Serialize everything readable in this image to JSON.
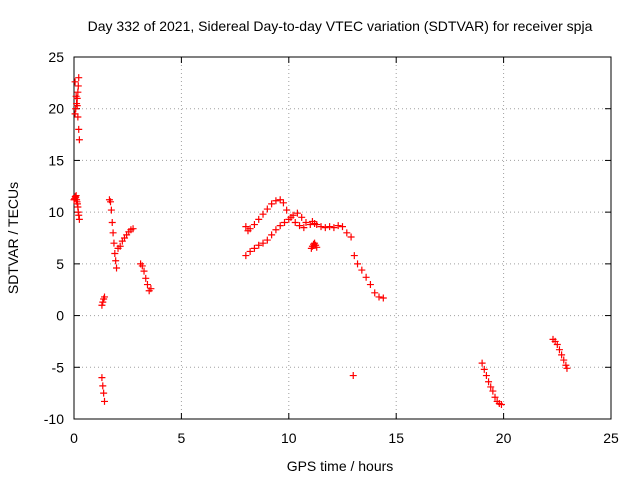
{
  "chart_data": {
    "type": "scatter",
    "title": "Day 332 of 2021, Sidereal Day-to-day VTEC variation (SDTVAR) for receiver spja",
    "xlabel": "GPS time / hours",
    "ylabel": "SDTVAR / TECUs",
    "xlim": [
      0,
      25
    ],
    "ylim": [
      -10,
      25
    ],
    "xticks": [
      0,
      5,
      10,
      15,
      20,
      25
    ],
    "yticks": [
      -10,
      -5,
      0,
      5,
      10,
      15,
      20,
      25
    ],
    "grid": true,
    "marker": "+",
    "color": "#ff0000",
    "series": [
      {
        "name": "SDTVAR",
        "x": [
          0.0,
          0.03,
          0.06,
          0.08,
          0.1,
          0.12,
          0.14,
          0.16,
          0.18,
          0.2,
          0.22,
          0.25,
          0.05,
          0.08,
          0.12,
          0.15,
          0.18,
          0.2,
          0.22,
          0.05,
          0.1,
          0.15,
          0.18,
          0.22,
          0.25,
          1.3,
          1.34,
          1.38,
          1.42,
          1.3,
          1.34,
          1.38,
          1.42,
          1.65,
          1.7,
          1.74,
          1.78,
          1.82,
          1.86,
          1.9,
          1.94,
          1.98,
          2.05,
          2.15,
          2.25,
          2.35,
          2.45,
          2.55,
          2.65,
          2.75,
          3.1,
          3.18,
          3.26,
          3.34,
          3.42,
          3.5,
          3.58,
          8.0,
          8.1,
          8.2,
          8.4,
          8.6,
          8.8,
          9.0,
          9.2,
          9.4,
          9.6,
          9.75,
          9.9,
          10.1,
          10.3,
          10.5,
          10.7,
          8.0,
          8.2,
          8.4,
          8.6,
          8.8,
          9.0,
          9.2,
          9.4,
          9.6,
          9.8,
          10.0,
          10.2,
          10.4,
          10.6,
          10.8,
          11.0,
          11.1,
          11.2,
          11.3,
          11.5,
          11.7,
          11.9,
          12.1,
          12.3,
          12.5,
          12.7,
          12.9,
          13.05,
          13.2,
          13.4,
          13.6,
          13.8,
          14.0,
          14.2,
          14.4,
          11.05,
          11.1,
          11.15,
          11.2,
          11.25,
          11.3,
          13.0,
          19.0,
          19.1,
          19.2,
          19.3,
          19.4,
          19.5,
          19.6,
          19.7,
          19.8,
          19.9,
          22.3,
          22.4,
          22.5,
          22.6,
          22.7,
          22.8,
          22.9,
          22.95
        ],
        "y": [
          11.2,
          11.3,
          11.5,
          11.4,
          11.6,
          11.2,
          11.0,
          10.8,
          10.5,
          10.0,
          9.7,
          9.3,
          19.5,
          20.0,
          20.5,
          21.0,
          21.6,
          22.2,
          23.0,
          22.6,
          21.2,
          20.3,
          19.2,
          18.0,
          17.0,
          -6.0,
          -6.8,
          -7.5,
          -8.3,
          1.0,
          1.3,
          1.6,
          1.8,
          11.2,
          11.0,
          10.2,
          9.0,
          8.0,
          7.0,
          6.0,
          5.3,
          4.6,
          6.5,
          6.7,
          7.2,
          7.5,
          7.8,
          8.1,
          8.3,
          8.4,
          5.0,
          4.8,
          4.3,
          3.6,
          3.0,
          2.4,
          2.6,
          8.6,
          8.2,
          8.4,
          8.8,
          9.3,
          9.8,
          10.3,
          10.8,
          11.1,
          11.2,
          10.9,
          10.2,
          9.5,
          9.0,
          8.7,
          8.5,
          5.8,
          6.2,
          6.5,
          6.8,
          7.0,
          7.3,
          7.8,
          8.3,
          8.7,
          9.0,
          9.3,
          9.7,
          9.9,
          9.5,
          9.0,
          8.8,
          9.1,
          8.9,
          8.8,
          8.6,
          8.5,
          8.6,
          8.5,
          8.7,
          8.6,
          8.0,
          7.6,
          5.8,
          5.0,
          4.4,
          3.7,
          3.0,
          2.2,
          1.8,
          1.7,
          6.5,
          6.7,
          6.9,
          7.0,
          6.8,
          6.6,
          -5.8,
          -4.6,
          -5.2,
          -5.8,
          -6.4,
          -6.9,
          -7.3,
          -7.9,
          -8.3,
          -8.5,
          -8.6,
          -2.3,
          -2.5,
          -2.8,
          -3.3,
          -3.8,
          -4.3,
          -4.8,
          -5.1
        ]
      }
    ]
  }
}
